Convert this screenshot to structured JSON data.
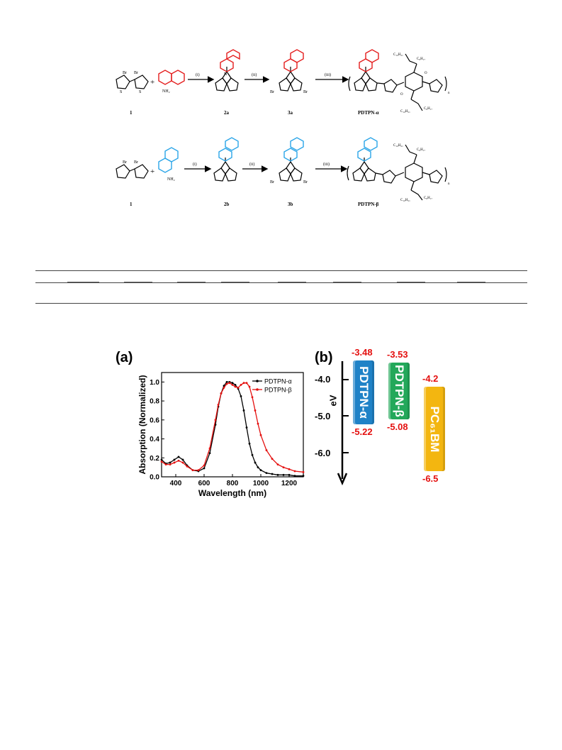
{
  "scheme": {
    "row1": {
      "compounds": [
        "1",
        "2a",
        "3a",
        "PDTPN-α"
      ],
      "steps": [
        "(i)",
        "(ii)",
        "(iii)"
      ],
      "sub_labels": {
        "br": "Br",
        "s": "S",
        "n": "N",
        "o": "O",
        "nh2": "NH₂",
        "c10": "C₁₀H₂₁",
        "c8": "C₈H₁₇",
        "n_rep": "n"
      }
    },
    "row2": {
      "compounds": [
        "1",
        "2b",
        "3b",
        "PDTPN-β"
      ],
      "steps": [
        "(i)",
        "(ii)",
        "(iii)"
      ]
    }
  },
  "panels": {
    "a": "(a)",
    "b": "(b)"
  },
  "chart_data": [
    {
      "type": "line",
      "xlabel": "Wavelength (nm)",
      "ylabel": "Absorption (Normalized)",
      "xlim": [
        300,
        1300
      ],
      "ylim": [
        0,
        1.1
      ],
      "xticks": [
        "400",
        "600",
        "800",
        "1000",
        "1200"
      ],
      "yticks": [
        "0.0",
        "0.2",
        "0.4",
        "0.6",
        "0.8",
        "1.0"
      ],
      "legend_position": "top-right",
      "series": [
        {
          "name": "PDTPN-α",
          "color": "#000000",
          "x": [
            300,
            330,
            360,
            390,
            420,
            450,
            480,
            520,
            560,
            600,
            640,
            680,
            700,
            720,
            740,
            760,
            780,
            800,
            820,
            840,
            860,
            880,
            900,
            920,
            940,
            960,
            980,
            1000,
            1040,
            1080,
            1120,
            1160,
            1200,
            1240,
            1300
          ],
          "y": [
            0.18,
            0.14,
            0.15,
            0.18,
            0.21,
            0.18,
            0.12,
            0.07,
            0.06,
            0.09,
            0.25,
            0.55,
            0.74,
            0.88,
            0.96,
            1.0,
            1.0,
            0.99,
            0.97,
            0.93,
            0.85,
            0.7,
            0.52,
            0.35,
            0.23,
            0.15,
            0.1,
            0.07,
            0.04,
            0.03,
            0.02,
            0.02,
            0.02,
            0.01,
            0.01
          ]
        },
        {
          "name": "PDTPN-β",
          "color": "#e4100f",
          "x": [
            300,
            330,
            360,
            390,
            420,
            450,
            480,
            520,
            560,
            600,
            640,
            680,
            700,
            720,
            740,
            760,
            780,
            800,
            820,
            840,
            860,
            880,
            900,
            920,
            940,
            960,
            980,
            1000,
            1040,
            1080,
            1120,
            1160,
            1200,
            1240,
            1300
          ],
          "y": [
            0.16,
            0.13,
            0.13,
            0.15,
            0.17,
            0.15,
            0.11,
            0.07,
            0.07,
            0.12,
            0.3,
            0.6,
            0.76,
            0.88,
            0.94,
            0.98,
            0.99,
            0.97,
            0.95,
            0.94,
            0.97,
            0.99,
            0.99,
            0.95,
            0.84,
            0.7,
            0.56,
            0.44,
            0.28,
            0.19,
            0.13,
            0.1,
            0.08,
            0.06,
            0.05
          ]
        }
      ]
    },
    {
      "type": "bar",
      "axis_label": "eV",
      "yticks": [
        "-4.0",
        "-5.0",
        "-6.0"
      ],
      "bars": [
        {
          "name": "PDTPN-α",
          "lumo": -3.48,
          "homo": -5.22,
          "lumo_label": "-3.48",
          "homo_label": "-5.22",
          "color": "#1f82c7"
        },
        {
          "name": "PDTPN-β",
          "lumo": -3.53,
          "homo": -5.08,
          "lumo_label": "-3.53",
          "homo_label": "-5.08",
          "color": "#23a85a"
        },
        {
          "name": "PC₆₁BM",
          "lumo": -4.2,
          "homo": -6.5,
          "lumo_label": "-4.2",
          "homo_label": "-6.5",
          "color": "#f3b610"
        }
      ]
    }
  ]
}
